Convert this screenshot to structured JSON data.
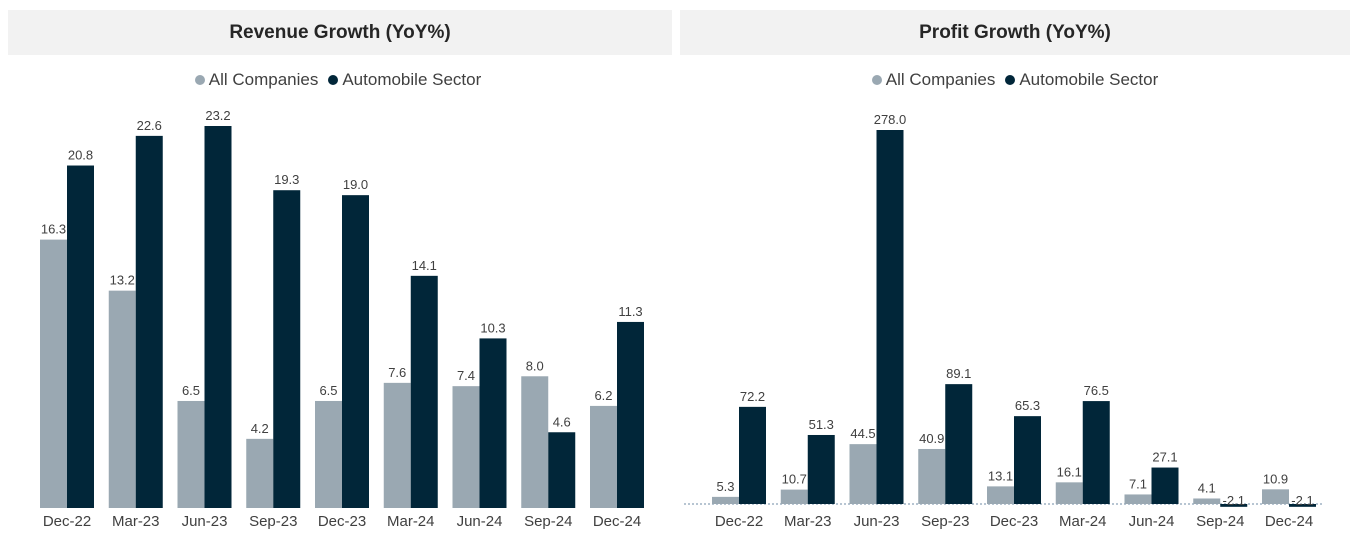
{
  "colors": {
    "all_companies": "#9aa8b2",
    "automobile_sector": "#012639",
    "baseline": "#9fb2c4"
  },
  "chart_data": [
    {
      "type": "bar",
      "title": "Revenue Growth (YoY%)",
      "categories": [
        "Dec-22",
        "Mar-23",
        "Jun-23",
        "Sep-23",
        "Dec-23",
        "Mar-24",
        "Jun-24",
        "Sep-24",
        "Dec-24"
      ],
      "series": [
        {
          "name": "All Companies",
          "values": [
            16.3,
            13.2,
            6.5,
            4.2,
            6.5,
            7.6,
            7.4,
            8.0,
            6.2
          ],
          "labels": [
            "16.3",
            "13.2",
            "6.5",
            "4.2",
            "6.5",
            "7.6",
            "7.4",
            "8.0",
            "6.2"
          ]
        },
        {
          "name": "Automobile Sector",
          "values": [
            20.8,
            22.6,
            23.2,
            19.3,
            19.0,
            14.1,
            10.3,
            4.6,
            11.3
          ],
          "labels": [
            "20.8",
            "22.6",
            "23.2",
            "19.3",
            "19.0",
            "14.1",
            "10.3",
            "4.6",
            "11.3"
          ]
        }
      ],
      "ylim": [
        0,
        23.2
      ],
      "grid": false,
      "legend": "top-center"
    },
    {
      "type": "bar",
      "title": "Profit Growth (YoY%)",
      "categories": [
        "Dec-22",
        "Mar-23",
        "Jun-23",
        "Sep-23",
        "Dec-23",
        "Mar-24",
        "Jun-24",
        "Sep-24",
        "Dec-24"
      ],
      "series": [
        {
          "name": "All Companies",
          "values": [
            5.3,
            10.7,
            44.5,
            40.9,
            13.1,
            16.1,
            7.1,
            4.1,
            10.9
          ],
          "labels": [
            "5.3",
            "10.7",
            "44.5",
            "40.9",
            "13.1",
            "16.1",
            "7.1",
            "4.1",
            "10.9"
          ]
        },
        {
          "name": "Automobile Sector",
          "values": [
            72.2,
            51.3,
            278.0,
            89.1,
            65.3,
            76.5,
            27.1,
            -2.1,
            -2.1
          ],
          "labels": [
            "72.2",
            "51.3",
            "278.0",
            "89.1",
            "65.3",
            "76.5",
            "27.1",
            "-2.1",
            "-2.1"
          ]
        }
      ],
      "ylim": [
        -2.1,
        278.0
      ],
      "baseline": "dotted zero line",
      "grid": false,
      "legend": "top-center"
    }
  ]
}
